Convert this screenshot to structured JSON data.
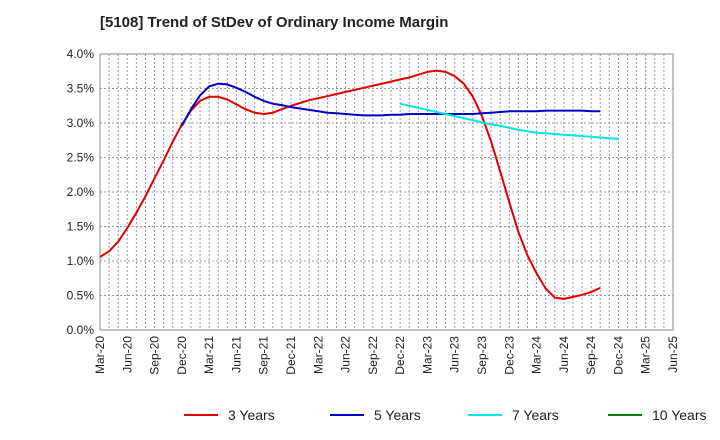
{
  "chart_data": {
    "type": "line",
    "title": "[5108]  Trend of StDev of Ordinary Income Margin",
    "xlabel": "",
    "ylabel": "",
    "ylim": [
      0,
      4.0
    ],
    "y_ticks": [
      "0.0%",
      "0.5%",
      "1.0%",
      "1.5%",
      "2.0%",
      "2.5%",
      "3.0%",
      "3.5%",
      "4.0%"
    ],
    "x_ticks": [
      "Mar-20",
      "Jun-20",
      "Sep-20",
      "Dec-20",
      "Mar-21",
      "Jun-21",
      "Sep-21",
      "Dec-21",
      "Mar-22",
      "Jun-22",
      "Sep-22",
      "Dec-22",
      "Mar-23",
      "Jun-23",
      "Sep-23",
      "Dec-23",
      "Mar-24",
      "Jun-24",
      "Sep-24",
      "Dec-24",
      "Mar-25",
      "Jun-25"
    ],
    "grid": true,
    "legend_position": "bottom",
    "series": [
      {
        "name": "3 Years",
        "color": "#e00000",
        "points": [
          [
            "Mar-20",
            1.06
          ],
          [
            "Apr-20",
            1.14
          ],
          [
            "May-20",
            1.28
          ],
          [
            "Jun-20",
            1.48
          ],
          [
            "Jul-20",
            1.7
          ],
          [
            "Aug-20",
            1.94
          ],
          [
            "Sep-20",
            2.2
          ],
          [
            "Oct-20",
            2.46
          ],
          [
            "Nov-20",
            2.73
          ],
          [
            "Dec-20",
            2.98
          ],
          [
            "Jan-21",
            3.18
          ],
          [
            "Feb-21",
            3.32
          ],
          [
            "Mar-21",
            3.38
          ],
          [
            "Apr-21",
            3.38
          ],
          [
            "May-21",
            3.34
          ],
          [
            "Jun-21",
            3.27
          ],
          [
            "Jul-21",
            3.2
          ],
          [
            "Aug-21",
            3.15
          ],
          [
            "Sep-21",
            3.13
          ],
          [
            "Oct-21",
            3.15
          ],
          [
            "Nov-21",
            3.2
          ],
          [
            "Dec-21",
            3.25
          ],
          [
            "Jan-22",
            3.29
          ],
          [
            "Feb-22",
            3.33
          ],
          [
            "Mar-22",
            3.36
          ],
          [
            "Apr-22",
            3.39
          ],
          [
            "May-22",
            3.42
          ],
          [
            "Jun-22",
            3.45
          ],
          [
            "Jul-22",
            3.48
          ],
          [
            "Aug-22",
            3.51
          ],
          [
            "Sep-22",
            3.54
          ],
          [
            "Oct-22",
            3.57
          ],
          [
            "Nov-22",
            3.6
          ],
          [
            "Dec-22",
            3.63
          ],
          [
            "Jan-23",
            3.66
          ],
          [
            "Feb-23",
            3.7
          ],
          [
            "Mar-23",
            3.74
          ],
          [
            "Apr-23",
            3.76
          ],
          [
            "May-23",
            3.74
          ],
          [
            "Jun-23",
            3.68
          ],
          [
            "Jul-23",
            3.57
          ],
          [
            "Aug-23",
            3.38
          ],
          [
            "Sep-23",
            3.1
          ],
          [
            "Oct-23",
            2.73
          ],
          [
            "Nov-23",
            2.3
          ],
          [
            "Dec-23",
            1.85
          ],
          [
            "Jan-24",
            1.42
          ],
          [
            "Feb-24",
            1.08
          ],
          [
            "Mar-24",
            0.82
          ],
          [
            "Apr-24",
            0.6
          ],
          [
            "May-24",
            0.47
          ],
          [
            "Jun-24",
            0.45
          ],
          [
            "Jul-24",
            0.48
          ],
          [
            "Aug-24",
            0.51
          ],
          [
            "Sep-24",
            0.55
          ],
          [
            "Oct-24",
            0.61
          ]
        ]
      },
      {
        "name": "5 Years",
        "color": "#0000c8",
        "points": [
          [
            "Dec-20",
            2.96
          ],
          [
            "Jan-21",
            3.2
          ],
          [
            "Feb-21",
            3.4
          ],
          [
            "Mar-21",
            3.53
          ],
          [
            "Apr-21",
            3.57
          ],
          [
            "May-21",
            3.56
          ],
          [
            "Jun-21",
            3.51
          ],
          [
            "Jul-21",
            3.45
          ],
          [
            "Aug-21",
            3.38
          ],
          [
            "Sep-21",
            3.32
          ],
          [
            "Oct-21",
            3.28
          ],
          [
            "Nov-21",
            3.26
          ],
          [
            "Dec-21",
            3.23
          ],
          [
            "Jan-22",
            3.21
          ],
          [
            "Feb-22",
            3.19
          ],
          [
            "Mar-22",
            3.17
          ],
          [
            "Apr-22",
            3.15
          ],
          [
            "May-22",
            3.14
          ],
          [
            "Jun-22",
            3.13
          ],
          [
            "Jul-22",
            3.12
          ],
          [
            "Aug-22",
            3.11
          ],
          [
            "Sep-22",
            3.11
          ],
          [
            "Oct-22",
            3.11
          ],
          [
            "Nov-22",
            3.12
          ],
          [
            "Dec-22",
            3.12
          ],
          [
            "Jan-23",
            3.13
          ],
          [
            "Feb-23",
            3.13
          ],
          [
            "Mar-23",
            3.13
          ],
          [
            "Apr-23",
            3.13
          ],
          [
            "May-23",
            3.13
          ],
          [
            "Jun-23",
            3.13
          ],
          [
            "Jul-23",
            3.13
          ],
          [
            "Aug-23",
            3.13
          ],
          [
            "Sep-23",
            3.14
          ],
          [
            "Oct-23",
            3.15
          ],
          [
            "Nov-23",
            3.16
          ],
          [
            "Dec-23",
            3.17
          ],
          [
            "Jan-24",
            3.17
          ],
          [
            "Feb-24",
            3.17
          ],
          [
            "Mar-24",
            3.17
          ],
          [
            "Apr-24",
            3.18
          ],
          [
            "May-24",
            3.18
          ],
          [
            "Jun-24",
            3.18
          ],
          [
            "Jul-24",
            3.18
          ],
          [
            "Aug-24",
            3.18
          ],
          [
            "Sep-24",
            3.17
          ],
          [
            "Oct-24",
            3.17
          ]
        ]
      },
      {
        "name": "7 Years",
        "color": "#00e5e5",
        "points": [
          [
            "Dec-22",
            3.28
          ],
          [
            "Jan-23",
            3.25
          ],
          [
            "Feb-23",
            3.22
          ],
          [
            "Mar-23",
            3.19
          ],
          [
            "Apr-23",
            3.16
          ],
          [
            "May-23",
            3.13
          ],
          [
            "Jun-23",
            3.1
          ],
          [
            "Jul-23",
            3.07
          ],
          [
            "Aug-23",
            3.04
          ],
          [
            "Sep-23",
            3.01
          ],
          [
            "Oct-23",
            2.98
          ],
          [
            "Nov-23",
            2.96
          ],
          [
            "Dec-23",
            2.93
          ],
          [
            "Jan-24",
            2.9
          ],
          [
            "Feb-24",
            2.88
          ],
          [
            "Mar-24",
            2.86
          ],
          [
            "Apr-24",
            2.85
          ],
          [
            "May-24",
            2.84
          ],
          [
            "Jun-24",
            2.83
          ],
          [
            "Jul-24",
            2.82
          ],
          [
            "Aug-24",
            2.81
          ],
          [
            "Sep-24",
            2.8
          ],
          [
            "Oct-24",
            2.79
          ],
          [
            "Nov-24",
            2.78
          ],
          [
            "Dec-24",
            2.77
          ]
        ]
      },
      {
        "name": "10 Years",
        "color": "#008000",
        "points": []
      }
    ]
  }
}
